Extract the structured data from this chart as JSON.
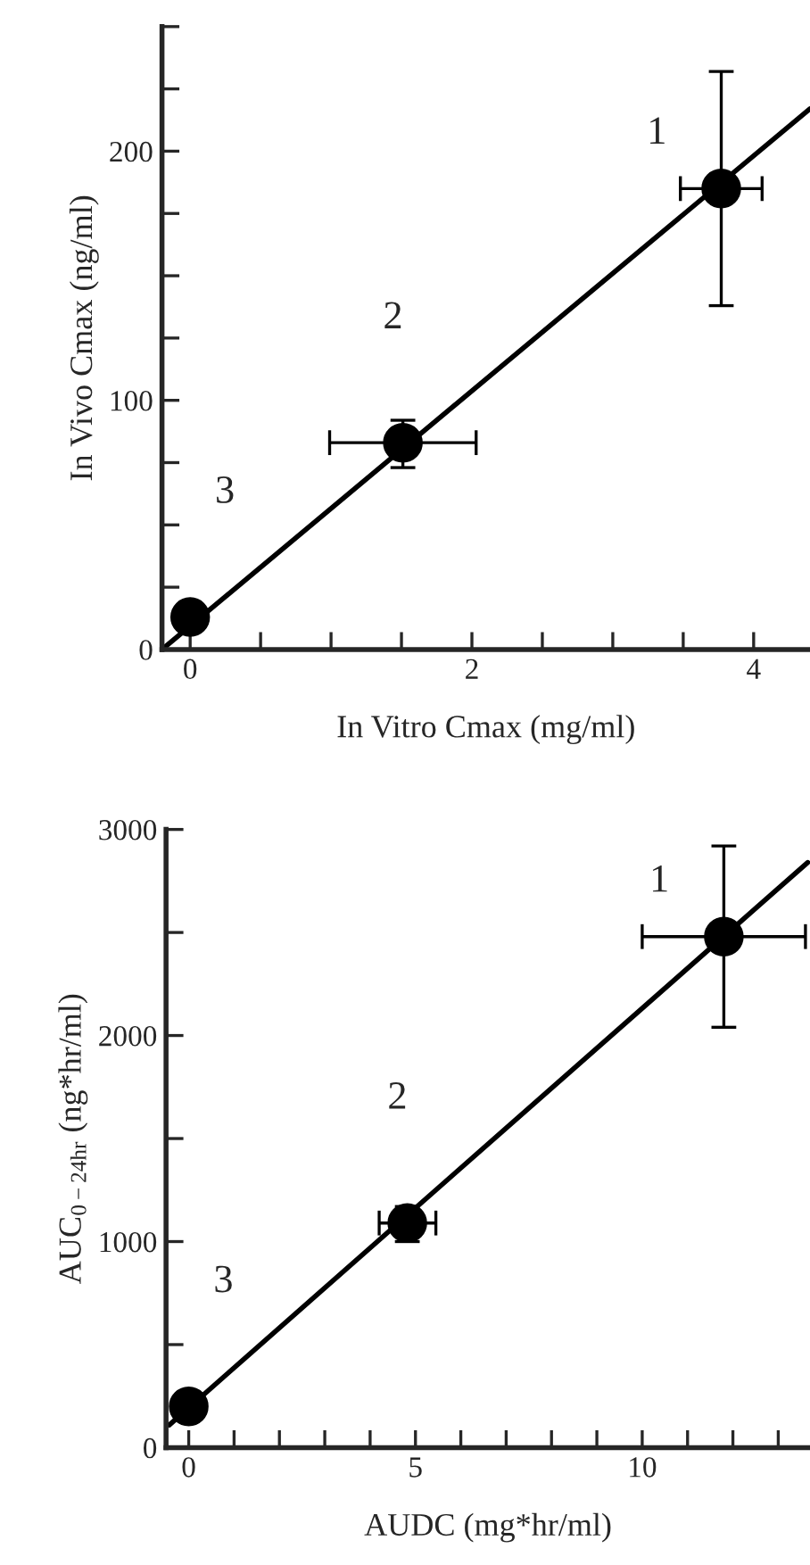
{
  "chart_data": [
    {
      "type": "scatter",
      "xlabel": "In Vitro Cmax (mg/ml)",
      "ylabel": "In Vivo Cmax (ng/ml)",
      "xlim": [
        -0.2,
        4.4
      ],
      "ylim": [
        0,
        250
      ],
      "xticks": [
        0,
        {
          "value": 0.5,
          "label": null
        },
        {
          "value": 1,
          "label": null
        },
        {
          "value": 1.5,
          "label": null
        },
        2,
        {
          "value": 2.5,
          "label": null
        },
        {
          "value": 3,
          "label": null
        },
        {
          "value": 3.5,
          "label": null
        },
        4
      ],
      "yticks": [
        0,
        {
          "value": 25,
          "label": null
        },
        {
          "value": 50,
          "label": null
        },
        {
          "value": 75,
          "label": null
        },
        100,
        {
          "value": 125,
          "label": null
        },
        {
          "value": 150,
          "label": null
        },
        {
          "value": 175,
          "label": null
        },
        200,
        {
          "value": 225,
          "label": null
        },
        {
          "value": 250,
          "label": null
        }
      ],
      "series": [
        {
          "type": "scatter",
          "marker": "circle",
          "color": "#000000",
          "x": [
            3.77,
            1.51,
            0.0
          ],
          "values": [
            185,
            83,
            13
          ],
          "errors": [
            [
              138,
              232
            ],
            [
              73,
              92
            ],
            null
          ],
          "xerrors": [
            [
              3.48,
              4.06
            ],
            [
              0.99,
              2.03
            ],
            null
          ]
        },
        {
          "type": "line",
          "color": "#000000",
          "x": [
            -0.2,
            4.4
          ],
          "values": [
            0,
            217
          ]
        }
      ],
      "annotations": [
        {
          "text": "1",
          "x": 3.77,
          "y": 185
        },
        {
          "text": "2",
          "x": 1.51,
          "y": 83
        },
        {
          "text": "3",
          "x": 0.0,
          "y": 13
        }
      ],
      "grid": false,
      "legend": false
    },
    {
      "type": "scatter",
      "xlabel": "AUDC (mg*hr/ml)",
      "ylabel": "AUC$_{0−24hr}$ (ng*hr/ml)",
      "xlim": [
        -0.5,
        13.7
      ],
      "ylim": [
        0,
        3000
      ],
      "xticks": [
        0,
        {
          "value": 1,
          "label": null
        },
        {
          "value": 2,
          "label": null
        },
        {
          "value": 3,
          "label": null
        },
        {
          "value": 4,
          "label": null
        },
        5,
        {
          "value": 6,
          "label": null
        },
        {
          "value": 7,
          "label": null
        },
        {
          "value": 8,
          "label": null
        },
        {
          "value": 9,
          "label": null
        },
        10,
        {
          "value": 11,
          "label": null
        },
        {
          "value": 12,
          "label": null
        },
        {
          "value": 13,
          "label": null
        }
      ],
      "yticks": [
        0,
        {
          "value": 500,
          "label": null
        },
        1000,
        {
          "value": 1500,
          "label": null
        },
        2000,
        {
          "value": 2500,
          "label": null
        },
        3000
      ],
      "series": [
        {
          "type": "scatter",
          "marker": "circle",
          "color": "#000000",
          "x": [
            11.8,
            4.82,
            0.0
          ],
          "values": [
            2480,
            1090,
            200
          ],
          "errors": [
            [
              2040,
              2920
            ],
            [
              1000,
              1170
            ],
            null
          ],
          "xerrors": [
            [
              10.0,
              13.6
            ],
            [
              4.2,
              5.45
            ],
            null
          ]
        },
        {
          "type": "line",
          "color": "#000000",
          "x": [
            -0.43,
            13.65
          ],
          "values": [
            110,
            2840
          ]
        }
      ],
      "annotations": [
        {
          "text": "1",
          "x": 11.8,
          "y": 2480
        },
        {
          "text": "2",
          "x": 4.82,
          "y": 1090
        },
        {
          "text": "3",
          "x": 0.0,
          "y": 200
        }
      ],
      "grid": false,
      "legend": false
    }
  ]
}
